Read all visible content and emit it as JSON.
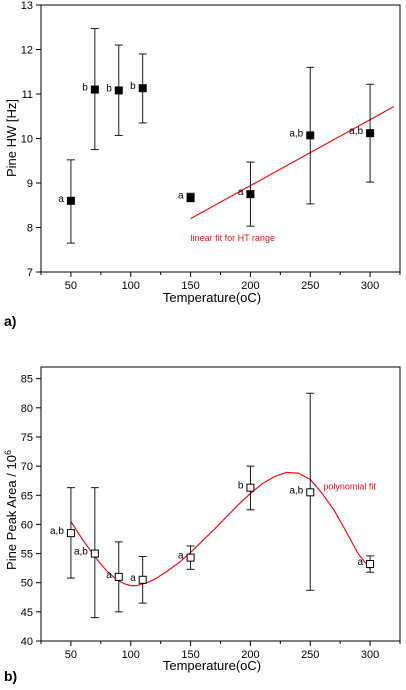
{
  "colors": {
    "fit": "#e8141b",
    "marker": "#000000",
    "axis": "#000000"
  },
  "chart_data": [
    {
      "panel_label": "a)",
      "type": "scatter",
      "xlabel": "Temperature(oC)",
      "ylabel": "Pine HW [Hz]",
      "xlim": [
        25,
        325
      ],
      "ylim": [
        7,
        13
      ],
      "xticks": [
        50,
        100,
        150,
        200,
        250,
        300
      ],
      "yticks": [
        7,
        8,
        9,
        10,
        11,
        12,
        13
      ],
      "marker": "filled-square",
      "points": [
        {
          "x": 50,
          "y": 8.6,
          "ylow": 7.65,
          "yhigh": 9.52,
          "label": "a"
        },
        {
          "x": 70,
          "y": 11.1,
          "ylow": 9.75,
          "yhigh": 12.47,
          "label": "b"
        },
        {
          "x": 90,
          "y": 11.08,
          "ylow": 10.07,
          "yhigh": 12.1,
          "label": "b"
        },
        {
          "x": 110,
          "y": 11.13,
          "ylow": 10.35,
          "yhigh": 11.9,
          "label": "b"
        },
        {
          "x": 150,
          "y": 8.67,
          "ylow": 8.58,
          "yhigh": 8.77,
          "label": "a"
        },
        {
          "x": 200,
          "y": 8.75,
          "ylow": 8.03,
          "yhigh": 9.47,
          "label": "a"
        },
        {
          "x": 250,
          "y": 10.07,
          "ylow": 8.53,
          "yhigh": 11.6,
          "label": "a,b"
        },
        {
          "x": 300,
          "y": 10.12,
          "ylow": 9.02,
          "yhigh": 11.22,
          "label": "a,b"
        }
      ],
      "fit": {
        "kind": "linear",
        "x": [
          150,
          320
        ],
        "y": [
          8.2,
          10.72
        ]
      },
      "annotation": {
        "text": "linear fit for HT range",
        "x": 150,
        "y": 7.7
      }
    },
    {
      "panel_label": "b)",
      "type": "scatter",
      "xlabel": "Temperature(oC)",
      "ylabel": "Pine Peak Area / 10",
      "ylabel_sup": "6",
      "xlim": [
        25,
        325
      ],
      "ylim": [
        40,
        87
      ],
      "xticks": [
        50,
        100,
        150,
        200,
        250,
        300
      ],
      "yticks": [
        40,
        45,
        50,
        55,
        60,
        65,
        70,
        75,
        80,
        85
      ],
      "marker": "open-square",
      "points": [
        {
          "x": 50,
          "y": 58.5,
          "ylow": 50.8,
          "yhigh": 66.3,
          "label": "a,b"
        },
        {
          "x": 70,
          "y": 55.0,
          "ylow": 44.0,
          "yhigh": 66.3,
          "label": "a,b"
        },
        {
          "x": 90,
          "y": 51.0,
          "ylow": 45.0,
          "yhigh": 57.0,
          "label": "a"
        },
        {
          "x": 110,
          "y": 50.5,
          "ylow": 46.5,
          "yhigh": 54.5,
          "label": "a"
        },
        {
          "x": 150,
          "y": 54.3,
          "ylow": 52.3,
          "yhigh": 56.3,
          "label": "a"
        },
        {
          "x": 200,
          "y": 66.3,
          "ylow": 62.5,
          "yhigh": 70.0,
          "label": "b"
        },
        {
          "x": 250,
          "y": 65.5,
          "ylow": 48.7,
          "yhigh": 82.5,
          "label": "a,b"
        },
        {
          "x": 300,
          "y": 53.2,
          "ylow": 51.8,
          "yhigh": 54.6,
          "label": "a"
        }
      ],
      "fit": {
        "kind": "polynomial",
        "x": [
          50,
          55,
          60,
          65,
          70,
          75,
          80,
          85,
          90,
          95,
          100,
          105,
          110,
          115,
          120,
          130,
          140,
          150,
          160,
          170,
          180,
          190,
          200,
          210,
          220,
          230,
          240,
          250,
          260,
          270,
          280,
          290,
          300
        ],
        "y": [
          60.5,
          58.9,
          57.3,
          55.9,
          54.5,
          53.2,
          52.0,
          51.1,
          50.3,
          49.8,
          49.5,
          49.5,
          49.8,
          50.1,
          50.6,
          51.9,
          53.4,
          55.2,
          57.2,
          59.2,
          61.3,
          63.4,
          65.3,
          67.0,
          68.2,
          68.9,
          68.8,
          67.7,
          65.3,
          62.4,
          58.8,
          55.0,
          52.4
        ]
      },
      "annotation": {
        "text": "polynomial fit",
        "x": 261,
        "y": 66.0
      }
    }
  ]
}
